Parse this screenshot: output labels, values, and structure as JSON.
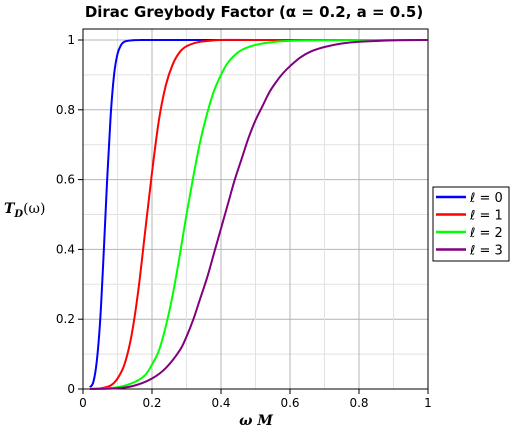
{
  "chart_data": {
    "type": "line",
    "title": "Dirac Greybody Factor (α = 0.2, a = 0.5)",
    "xlabel": "ω M",
    "ylabel": "T_D(ω)",
    "xlim": [
      0,
      1
    ],
    "ylim": [
      0,
      1
    ],
    "x_ticks": [
      "0",
      "0.2",
      "0.4",
      "0.6",
      "0.8",
      "1"
    ],
    "y_ticks": [
      "0",
      "0.2",
      "0.4",
      "0.6",
      "0.8",
      "1"
    ],
    "grid": true,
    "legend_position": "right",
    "series": [
      {
        "name": "ℓ = 0",
        "color": "#0000ff",
        "x": [
          0.02,
          0.03,
          0.04,
          0.05,
          0.06,
          0.07,
          0.08,
          0.09,
          0.1,
          0.11,
          0.12,
          0.14,
          0.17,
          0.25,
          1.0
        ],
        "y": [
          0.005,
          0.02,
          0.08,
          0.2,
          0.39,
          0.6,
          0.78,
          0.9,
          0.96,
          0.985,
          0.995,
          0.999,
          1.0,
          1.0,
          1.0
        ]
      },
      {
        "name": "ℓ = 1",
        "color": "#ff0000",
        "x": [
          0.02,
          0.05,
          0.08,
          0.1,
          0.12,
          0.14,
          0.16,
          0.18,
          0.2,
          0.22,
          0.24,
          0.26,
          0.28,
          0.3,
          0.33,
          0.36,
          0.4,
          0.5,
          1.0
        ],
        "y": [
          0.0,
          0.002,
          0.01,
          0.03,
          0.07,
          0.15,
          0.28,
          0.45,
          0.62,
          0.77,
          0.87,
          0.93,
          0.965,
          0.982,
          0.993,
          0.997,
          1.0,
          1.0,
          1.0
        ]
      },
      {
        "name": "ℓ = 2",
        "color": "#00ff00",
        "x": [
          0.02,
          0.1,
          0.15,
          0.18,
          0.2,
          0.22,
          0.24,
          0.26,
          0.28,
          0.3,
          0.32,
          0.34,
          0.36,
          0.38,
          0.4,
          0.42,
          0.45,
          0.48,
          0.52,
          0.57,
          0.65,
          0.8,
          1.0
        ],
        "y": [
          0.0,
          0.005,
          0.02,
          0.04,
          0.07,
          0.11,
          0.18,
          0.27,
          0.38,
          0.5,
          0.61,
          0.71,
          0.79,
          0.855,
          0.9,
          0.935,
          0.965,
          0.98,
          0.99,
          0.996,
          0.999,
          1.0,
          1.0
        ]
      },
      {
        "name": "ℓ = 3",
        "color": "#800080",
        "x": [
          0.02,
          0.1,
          0.15,
          0.2,
          0.24,
          0.28,
          0.3,
          0.32,
          0.34,
          0.36,
          0.38,
          0.4,
          0.42,
          0.44,
          0.46,
          0.48,
          0.5,
          0.52,
          0.54,
          0.56,
          0.58,
          0.6,
          0.63,
          0.66,
          0.7,
          0.75,
          0.8,
          0.9,
          1.0
        ],
        "y": [
          0.0,
          0.002,
          0.01,
          0.03,
          0.06,
          0.11,
          0.15,
          0.2,
          0.26,
          0.32,
          0.39,
          0.46,
          0.53,
          0.6,
          0.66,
          0.72,
          0.77,
          0.81,
          0.85,
          0.88,
          0.905,
          0.925,
          0.95,
          0.967,
          0.98,
          0.99,
          0.995,
          0.999,
          1.0
        ]
      }
    ]
  }
}
